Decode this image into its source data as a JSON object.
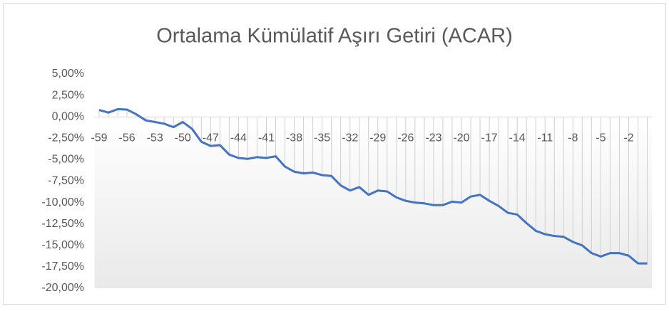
{
  "chart_data": {
    "type": "line",
    "title": "Ortalama Kümülatif Aşırı Getiri (ACAR)",
    "categories": [
      "-59",
      null,
      null,
      "-56",
      null,
      null,
      "-53",
      null,
      null,
      "-50",
      null,
      null,
      "-47",
      null,
      null,
      "-44",
      null,
      null,
      "-41",
      null,
      null,
      "-38",
      null,
      null,
      "-35",
      null,
      null,
      "-32",
      null,
      null,
      "-29",
      null,
      null,
      "-26",
      null,
      null,
      "-23",
      null,
      null,
      "-20",
      null,
      null,
      "-17",
      null,
      null,
      "-14",
      null,
      null,
      "-11",
      null,
      null,
      "-8",
      null,
      null,
      "-5",
      null,
      null,
      "-2",
      null,
      null
    ],
    "series": [
      {
        "name": "ACAR",
        "color": "#4472c4",
        "values": [
          0.8,
          0.5,
          0.9,
          0.85,
          0.3,
          -0.4,
          -0.6,
          -0.8,
          -1.2,
          -0.6,
          -1.4,
          -2.9,
          -3.4,
          -3.3,
          -4.4,
          -4.8,
          -4.9,
          -4.7,
          -4.8,
          -4.6,
          -5.8,
          -6.4,
          -6.6,
          -6.5,
          -6.8,
          -6.9,
          -8.0,
          -8.6,
          -8.2,
          -9.1,
          -8.6,
          -8.7,
          -9.4,
          -9.8,
          -10.0,
          -10.1,
          -10.3,
          -10.3,
          -9.9,
          -10.0,
          -9.3,
          -9.1,
          -9.8,
          -10.4,
          -11.2,
          -11.4,
          -12.4,
          -13.3,
          -13.7,
          -13.9,
          -14.0,
          -14.6,
          -15.0,
          -15.9,
          -16.3,
          -15.9,
          -15.9,
          -16.2,
          -17.1,
          -17.1
        ]
      }
    ],
    "ylim": [
      -20,
      5
    ],
    "yticks": [
      {
        "value": 5,
        "label": "5,00%"
      },
      {
        "value": 2.5,
        "label": "2,50%"
      },
      {
        "value": 0,
        "label": "0,00%"
      },
      {
        "value": -2.5,
        "label": "-2,50%"
      },
      {
        "value": -5,
        "label": "-5,00%"
      },
      {
        "value": -7.5,
        "label": "-7,50%"
      },
      {
        "value": -10,
        "label": "-10,00%"
      },
      {
        "value": -12.5,
        "label": "-12,50%"
      },
      {
        "value": -15,
        "label": "-15,00%"
      },
      {
        "value": -17.5,
        "label": "-17,50%"
      },
      {
        "value": -20,
        "label": "-20,00%"
      }
    ],
    "drop_lines": true
  }
}
